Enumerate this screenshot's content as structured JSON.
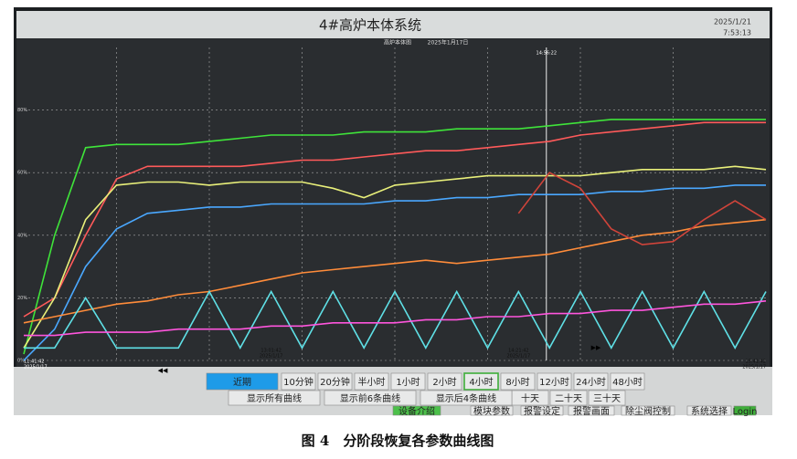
{
  "window": {
    "title": "4#高炉本体系统",
    "date": "2025/1/21",
    "time": "7:53:13"
  },
  "chart_data": {
    "type": "line",
    "title": "高炉本体图",
    "subtitle": "2025年1月17日",
    "cursor_label": "14:56:22",
    "categories": [
      "11:41:42",
      null,
      null,
      null,
      null,
      null,
      null,
      null,
      "13:01:42",
      null,
      null,
      null,
      null,
      null,
      null,
      null,
      "14:21:42",
      null,
      null,
      null,
      null,
      null,
      null,
      null,
      "15:41:42"
    ],
    "x_date": "2025/1/17",
    "ylim": [
      0,
      100
    ],
    "yticks": [
      {
        "value": 0,
        "label": "0%"
      },
      {
        "value": 20,
        "label": "20%"
      },
      {
        "value": 40,
        "label": "40%"
      },
      {
        "value": 60,
        "label": "60%"
      },
      {
        "value": 80,
        "label": "80%"
      }
    ],
    "grid": true,
    "series": [
      {
        "color": "#3fe43a",
        "values": [
          2,
          40,
          68,
          69,
          69,
          69,
          70,
          71,
          72,
          72,
          72,
          73,
          73,
          73,
          74,
          74,
          74,
          75,
          76,
          77,
          77,
          77,
          77,
          77,
          77
        ]
      },
      {
        "color": "#ff5a5a",
        "values": [
          14,
          20,
          40,
          58,
          62,
          62,
          62,
          62,
          63,
          64,
          64,
          65,
          66,
          67,
          67,
          68,
          69,
          70,
          72,
          73,
          74,
          75,
          76,
          76,
          76
        ]
      },
      {
        "color": "#e9f07a",
        "values": [
          4,
          20,
          45,
          56,
          57,
          57,
          56,
          57,
          57,
          57,
          55,
          52,
          56,
          57,
          58,
          59,
          59,
          59,
          59,
          60,
          61,
          61,
          61,
          62,
          61
        ]
      },
      {
        "color": "#4aa8ff",
        "values": [
          0,
          10,
          30,
          42,
          47,
          48,
          49,
          49,
          50,
          50,
          50,
          50,
          51,
          51,
          52,
          52,
          53,
          53,
          53,
          54,
          54,
          55,
          55,
          56,
          56
        ]
      },
      {
        "color": "#ff8c3a",
        "values": [
          12,
          14,
          16,
          18,
          19,
          21,
          22,
          24,
          26,
          28,
          29,
          30,
          31,
          32,
          31,
          32,
          33,
          34,
          36,
          38,
          40,
          41,
          43,
          44,
          45
        ]
      },
      {
        "color": "#d0443a",
        "values": [
          null,
          null,
          null,
          null,
          null,
          null,
          null,
          null,
          null,
          null,
          null,
          null,
          null,
          null,
          null,
          null,
          47,
          60,
          55,
          42,
          37,
          38,
          45,
          51,
          45
        ]
      },
      {
        "color": "#5fe0e6",
        "values": [
          4,
          4,
          20,
          4,
          4,
          4,
          22,
          4,
          22,
          4,
          22,
          4,
          22,
          4,
          22,
          4,
          22,
          4,
          22,
          4,
          22,
          4,
          22,
          4,
          22
        ]
      },
      {
        "color": "#ff55dd",
        "values": [
          8,
          8,
          9,
          9,
          9,
          10,
          10,
          10,
          11,
          11,
          12,
          12,
          12,
          13,
          13,
          14,
          14,
          15,
          15,
          16,
          16,
          17,
          18,
          18,
          19
        ]
      }
    ]
  },
  "range_buttons": [
    "近期",
    "10分钟",
    "20分钟",
    "半小时",
    "1小时",
    "2小时",
    "4小时",
    "8小时",
    "12小时",
    "24小时",
    "48小时"
  ],
  "active_index": 0,
  "selected_index": 6,
  "day_buttons": [
    "十天",
    "二十天",
    "三十天"
  ],
  "curve_buttons": [
    "显示所有曲线",
    "显示前6条曲线",
    "显示后4条曲线"
  ],
  "nav_buttons": [
    "设备介绍",
    "模块参数",
    "报警设定",
    "报警画面",
    "除尘阀控制",
    "系统选择",
    "Login"
  ],
  "caption": "图 4　分阶段恢复各参数曲线图"
}
